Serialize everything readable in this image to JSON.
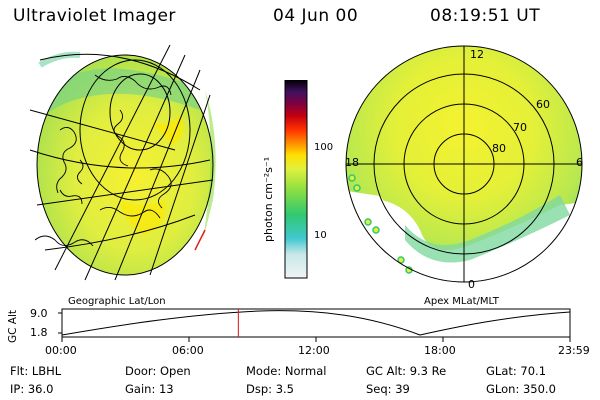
{
  "header": {
    "title": "Ultraviolet Imager",
    "date": "04 Jun 00",
    "time": "08:19:51 UT"
  },
  "colorbar": {
    "unit_label": "photon cm⁻²s⁻¹",
    "ticks": [
      {
        "label": "100",
        "value": 100
      },
      {
        "label": "10",
        "value": 10
      }
    ],
    "colors": [
      "#f0f4f4",
      "#c8e8e8",
      "#40c8d0",
      "#30c870",
      "#90e040",
      "#e0f040",
      "#ffe000",
      "#ff9000",
      "#ff3000",
      "#c00010",
      "#800040",
      "#401060",
      "#000000"
    ]
  },
  "geo_panel": {
    "caption": "Geographic Lat/Lon"
  },
  "polar_panel": {
    "caption": "Apex MLat/MLT",
    "lat_labels": [
      "60",
      "70",
      "80"
    ],
    "mlt_labels": [
      "12",
      "18",
      "6",
      "0"
    ]
  },
  "altitude_plot": {
    "ylabel": "GC Alt",
    "y_ticks": [
      "9.0",
      "1.8"
    ],
    "x_ticks": [
      "00:00",
      "06:00",
      "12:00",
      "18:00",
      "23:59"
    ],
    "marker_time": "08:19:51",
    "marker_color": "#e01010"
  },
  "status": [
    {
      "label": "Flt:",
      "value": "LBHL"
    },
    {
      "label": "Door:",
      "value": "Open"
    },
    {
      "label": "Mode:",
      "value": "Normal"
    },
    {
      "label": "GC Alt:",
      "value": "9.3 Re"
    },
    {
      "label": "GLat:",
      "value": "70.1"
    },
    {
      "label": "IP:",
      "value": "36.0"
    },
    {
      "label": "Gain:",
      "value": "13"
    },
    {
      "label": "Dsp:",
      "value": "3.5"
    },
    {
      "label": "Seq:",
      "value": "39"
    },
    {
      "label": "GLon:",
      "value": "350.0"
    }
  ]
}
